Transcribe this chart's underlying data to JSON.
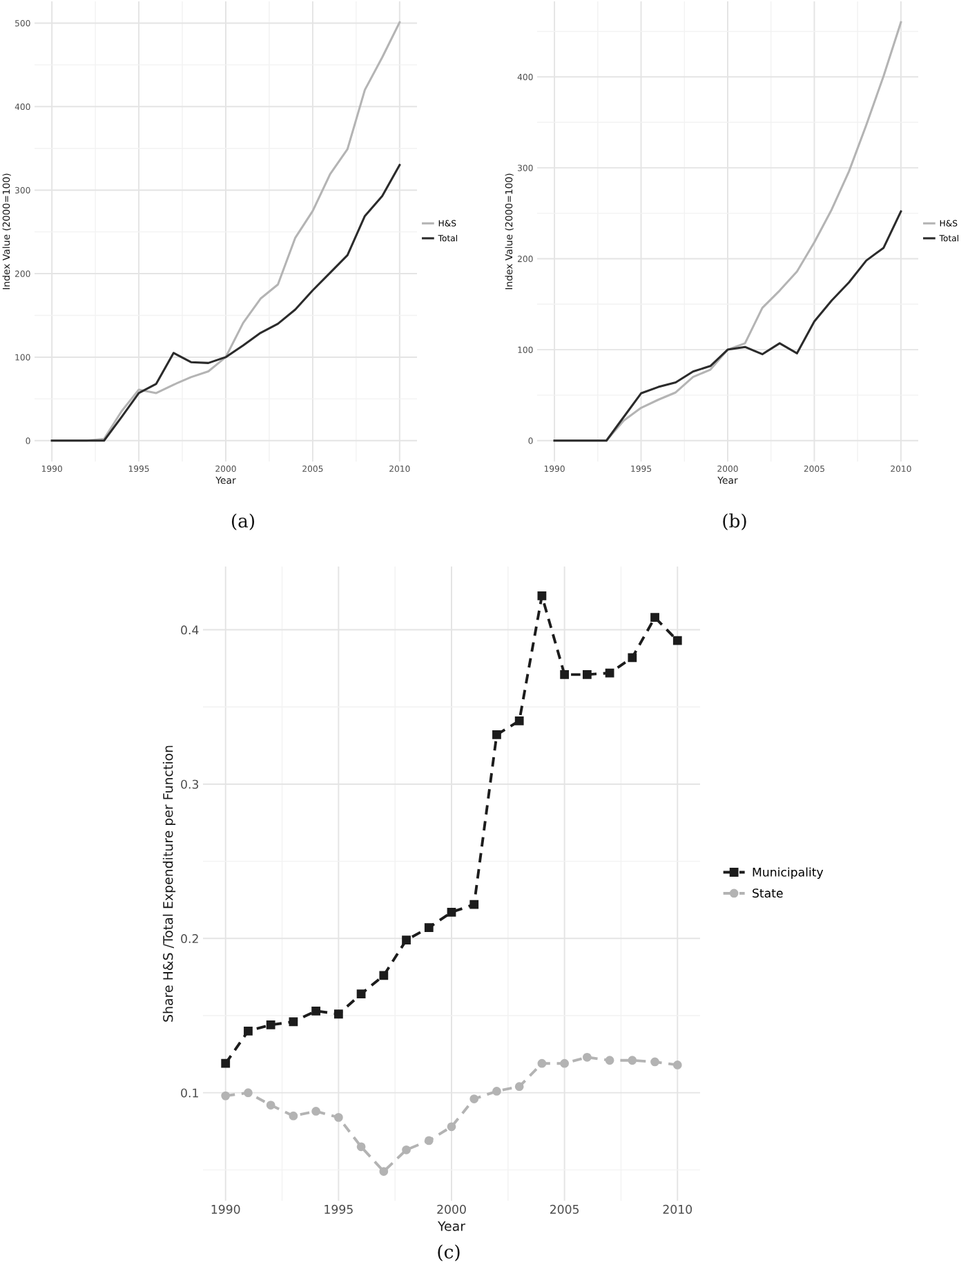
{
  "chart_data": [
    {
      "type": "line",
      "x": [
        1990,
        1991,
        1992,
        1993,
        1994,
        1995,
        1996,
        1997,
        1998,
        1999,
        2000,
        2001,
        2002,
        2003,
        2004,
        2005,
        2006,
        2007,
        2008,
        2009,
        2010
      ],
      "series": [
        {
          "name": "H&S",
          "color": "#b4b4b4",
          "values": [
            0,
            0,
            0,
            2,
            35,
            61,
            57,
            67,
            76,
            83,
            100,
            141,
            170,
            187,
            243,
            275,
            319,
            349,
            420,
            459,
            501
          ]
        },
        {
          "name": "Total",
          "color": "#2b2b2b",
          "values": [
            0,
            0,
            0,
            0,
            28,
            57,
            68,
            105,
            94,
            93,
            100,
            114,
            129,
            140,
            157,
            180,
            201,
            222,
            269,
            293,
            330
          ]
        }
      ],
      "xlabel": "Year",
      "ylabel": "Index Value (2000=100)",
      "xlim": [
        1989,
        2011
      ],
      "ylim": [
        -25,
        526
      ],
      "xticks": [
        1990,
        {
          "value": 1992.5,
          "label": null
        },
        1995,
        {
          "value": 1997.5,
          "label": null
        },
        2000,
        {
          "value": 2002.5,
          "label": null
        },
        2005,
        {
          "value": 2007.5,
          "label": null
        },
        2010
      ],
      "yticks": [
        0,
        {
          "value": 50,
          "label": null
        },
        100,
        {
          "value": 150,
          "label": null
        },
        200,
        {
          "value": 250,
          "label": null
        },
        300,
        {
          "value": 350,
          "label": null
        },
        400,
        {
          "value": 450,
          "label": null
        },
        500
      ],
      "grid": true,
      "legend": "right",
      "annotations": [
        "(a)"
      ]
    },
    {
      "type": "line",
      "x": [
        1990,
        1991,
        1992,
        1993,
        1994,
        1995,
        1996,
        1997,
        1998,
        1999,
        2000,
        2001,
        2002,
        2003,
        2004,
        2005,
        2006,
        2007,
        2008,
        2009,
        2010
      ],
      "series": [
        {
          "name": "H&S",
          "color": "#b4b4b4",
          "values": [
            0,
            0,
            0,
            0,
            22,
            36,
            45,
            53,
            70,
            78,
            100,
            107,
            146,
            165,
            186,
            218,
            254,
            296,
            347,
            401,
            460
          ]
        },
        {
          "name": "Total",
          "color": "#2b2b2b",
          "values": [
            0,
            0,
            0,
            0,
            26,
            52,
            59,
            64,
            76,
            82,
            100,
            103,
            95,
            107,
            96,
            131,
            154,
            174,
            198,
            212,
            252
          ]
        }
      ],
      "xlabel": "Year",
      "ylabel": "Index Value (2000=100)",
      "xlim": [
        1989,
        2011
      ],
      "ylim": [
        -23,
        483
      ],
      "xticks": [
        1990,
        {
          "value": 1992.5,
          "label": null
        },
        1995,
        {
          "value": 1997.5,
          "label": null
        },
        2000,
        {
          "value": 2002.5,
          "label": null
        },
        2005,
        {
          "value": 2007.5,
          "label": null
        },
        2010
      ],
      "yticks": [
        0,
        {
          "value": 50,
          "label": null
        },
        100,
        {
          "value": 150,
          "label": null
        },
        200,
        {
          "value": 250,
          "label": null
        },
        300,
        {
          "value": 350,
          "label": null
        },
        400,
        {
          "value": 450,
          "label": null
        }
      ],
      "grid": true,
      "legend": "right",
      "annotations": [
        "(b)"
      ]
    },
    {
      "type": "line",
      "x": [
        1990,
        1991,
        1992,
        1993,
        1994,
        1995,
        1996,
        1997,
        1998,
        1999,
        2000,
        2001,
        2002,
        2003,
        2004,
        2005,
        2006,
        2007,
        2008,
        2009,
        2010
      ],
      "series": [
        {
          "name": "Municipality",
          "color": "#1c1c1c",
          "marker": "square",
          "line_style": "dashed",
          "values": [
            0.119,
            0.14,
            0.144,
            0.146,
            0.153,
            0.151,
            0.164,
            0.176,
            0.199,
            0.207,
            0.217,
            0.222,
            0.332,
            0.341,
            0.422,
            0.371,
            0.371,
            0.372,
            0.382,
            0.408,
            0.393
          ]
        },
        {
          "name": "State",
          "color": "#b3b3b3",
          "marker": "circle",
          "line_style": "dashed",
          "values": [
            0.098,
            0.1,
            0.092,
            0.085,
            0.088,
            0.084,
            0.065,
            0.049,
            0.063,
            0.069,
            0.078,
            0.096,
            0.101,
            0.104,
            0.119,
            0.119,
            0.123,
            0.121,
            0.121,
            0.12,
            0.118
          ]
        }
      ],
      "xlabel": "Year",
      "ylabel": "Share H&S /Total Expenditure per Function",
      "xlim": [
        1989,
        2011
      ],
      "ylim": [
        0.03,
        0.441
      ],
      "xticks": [
        1990,
        {
          "value": 1992.5,
          "label": null
        },
        1995,
        {
          "value": 1997.5,
          "label": null
        },
        2000,
        {
          "value": 2002.5,
          "label": null
        },
        2005,
        {
          "value": 2007.5,
          "label": null
        },
        2010
      ],
      "yticks": [
        {
          "value": 0.05,
          "label": null
        },
        0.1,
        {
          "value": 0.15,
          "label": null
        },
        0.2,
        {
          "value": 0.25,
          "label": null
        },
        0.3,
        {
          "value": 0.35,
          "label": null
        },
        0.4
      ],
      "grid": true,
      "legend": "right",
      "annotations": [
        "(c)"
      ]
    }
  ]
}
